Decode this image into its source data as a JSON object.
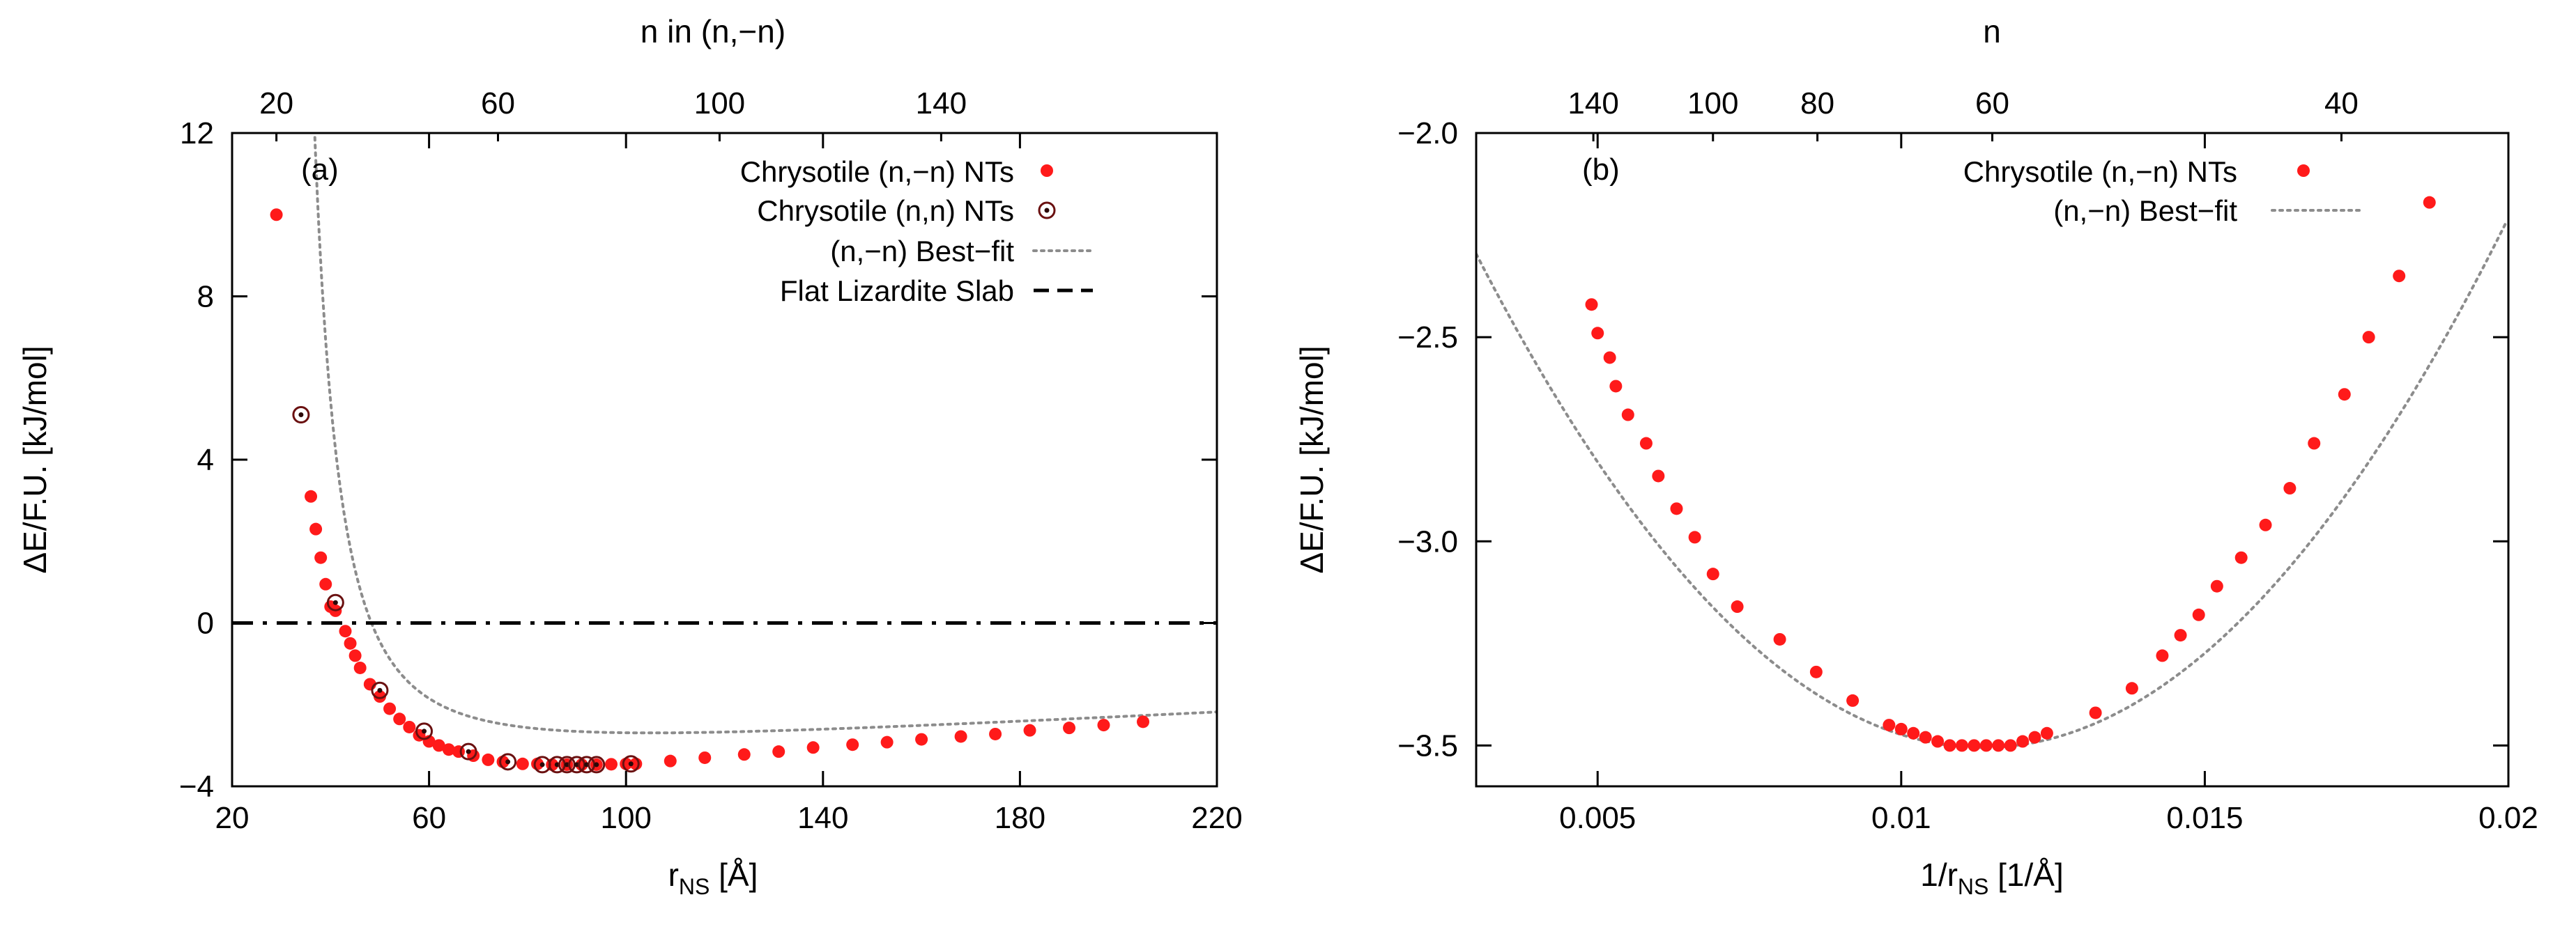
{
  "chart_data": [
    {
      "panel": "a",
      "type": "scatter",
      "panel_label": "(a)",
      "xlabel_main": "r",
      "xlabel_sub": "NS",
      "xlabel_unit": " [Å]",
      "ylabel": "ΔE/F.U. [kJ/mol]",
      "top_label": "n in (n,−n)",
      "xlim": [
        20,
        220
      ],
      "ylim": [
        -4,
        12
      ],
      "xticks": [
        20,
        60,
        100,
        140,
        180,
        220
      ],
      "yticks": [
        -4,
        0,
        4,
        8,
        12
      ],
      "top_ticks": [
        {
          "label": "20",
          "x": 29
        },
        {
          "label": "60",
          "x": 74
        },
        {
          "label": "100",
          "x": 119
        },
        {
          "label": "140",
          "x": 164
        }
      ],
      "legend": [
        {
          "label": "Chrysotile (n,−n) NTs",
          "kind": "red-dot"
        },
        {
          "label": "Chrysotile (n,n) NTs",
          "kind": "open-circle"
        },
        {
          "label": "(n,−n) Best−fit",
          "kind": "dotted"
        },
        {
          "label": "Flat Lizardite Slab",
          "kind": "dashdot"
        }
      ],
      "slab_y": 0,
      "fit": {
        "a": 0.8985,
        "b": -0.0045,
        "c": 29.72,
        "d": 0.0063
      },
      "series": [
        {
          "name": "Chrysotile (n,−n) NTs",
          "points": [
            [
              29,
              10.0
            ],
            [
              36,
              3.1
            ],
            [
              37,
              2.3
            ],
            [
              38,
              1.6
            ],
            [
              39,
              0.95
            ],
            [
              40,
              0.4
            ],
            [
              41,
              0.3
            ],
            [
              43,
              -0.2
            ],
            [
              44,
              -0.5
            ],
            [
              45,
              -0.8
            ],
            [
              46,
              -1.1
            ],
            [
              48,
              -1.5
            ],
            [
              50,
              -1.8
            ],
            [
              52,
              -2.1
            ],
            [
              54,
              -2.35
            ],
            [
              56,
              -2.55
            ],
            [
              58,
              -2.75
            ],
            [
              60,
              -2.9
            ],
            [
              62,
              -3.0
            ],
            [
              64,
              -3.1
            ],
            [
              66,
              -3.15
            ],
            [
              69,
              -3.25
            ],
            [
              72,
              -3.35
            ],
            [
              75,
              -3.4
            ],
            [
              79,
              -3.45
            ],
            [
              82,
              -3.45
            ],
            [
              85,
              -3.47
            ],
            [
              88,
              -3.47
            ],
            [
              91,
              -3.47
            ],
            [
              94,
              -3.47
            ],
            [
              97,
              -3.46
            ],
            [
              100,
              -3.45
            ],
            [
              102,
              -3.45
            ],
            [
              109,
              -3.38
            ],
            [
              116,
              -3.3
            ],
            [
              124,
              -3.22
            ],
            [
              131,
              -3.15
            ],
            [
              138,
              -3.05
            ],
            [
              146,
              -2.98
            ],
            [
              153,
              -2.92
            ],
            [
              160,
              -2.85
            ],
            [
              168,
              -2.78
            ],
            [
              175,
              -2.72
            ],
            [
              182,
              -2.63
            ],
            [
              190,
              -2.57
            ],
            [
              197,
              -2.5
            ],
            [
              205,
              -2.42
            ]
          ]
        },
        {
          "name": "Chrysotile (n,n) NTs",
          "points": [
            [
              34,
              5.1
            ],
            [
              41,
              0.5
            ],
            [
              50,
              -1.65
            ],
            [
              59,
              -2.65
            ],
            [
              68,
              -3.15
            ],
            [
              76,
              -3.4
            ],
            [
              83,
              -3.47
            ],
            [
              86,
              -3.47
            ],
            [
              88,
              -3.47
            ],
            [
              90,
              -3.47
            ],
            [
              92,
              -3.47
            ],
            [
              94,
              -3.47
            ],
            [
              101,
              -3.45
            ]
          ]
        }
      ]
    },
    {
      "panel": "b",
      "type": "scatter",
      "panel_label": "(b)",
      "xlabel_main": "1/r",
      "xlabel_sub": "NS",
      "xlabel_unit": " [1/Å]",
      "ylabel": "ΔE/F.U. [kJ/mol]",
      "top_label": "n",
      "xlim": [
        0.003,
        0.02
      ],
      "ylim": [
        -3.6,
        -2.0
      ],
      "xticks": [
        0.005,
        0.01,
        0.015,
        0.02
      ],
      "xtick_labels": [
        "0.005",
        "0.01",
        "0.015",
        "0.02"
      ],
      "yticks": [
        -3.5,
        -3.0,
        -2.5,
        -2.0
      ],
      "ytick_labels": [
        "−3.5",
        "−3.0",
        "−2.5",
        "−2.0"
      ],
      "top_ticks": [
        {
          "label": "140",
          "x": 0.00493
        },
        {
          "label": "100",
          "x": 0.0069
        },
        {
          "label": "80",
          "x": 0.00862
        },
        {
          "label": "60",
          "x": 0.0115
        },
        {
          "label": "40",
          "x": 0.01725
        }
      ],
      "legend": [
        {
          "label": "Chrysotile (n,−n) NTs",
          "kind": "red-dot"
        },
        {
          "label": "(n,−n) Best−fit",
          "kind": "dotted"
        }
      ],
      "fit": {
        "a": 17340,
        "x0": 0.01135,
        "y0": -3.505
      },
      "series": [
        {
          "name": "Chrysotile (n,−n) NTs",
          "points": [
            [
              0.0049,
              -2.42
            ],
            [
              0.005,
              -2.49
            ],
            [
              0.0052,
              -2.55
            ],
            [
              0.0053,
              -2.62
            ],
            [
              0.0055,
              -2.69
            ],
            [
              0.0058,
              -2.76
            ],
            [
              0.006,
              -2.84
            ],
            [
              0.0063,
              -2.92
            ],
            [
              0.0066,
              -2.99
            ],
            [
              0.0069,
              -3.08
            ],
            [
              0.0073,
              -3.16
            ],
            [
              0.008,
              -3.24
            ],
            [
              0.0086,
              -3.32
            ],
            [
              0.0092,
              -3.39
            ],
            [
              0.0098,
              -3.45
            ],
            [
              0.01,
              -3.46
            ],
            [
              0.0102,
              -3.47
            ],
            [
              0.0104,
              -3.48
            ],
            [
              0.0106,
              -3.49
            ],
            [
              0.0108,
              -3.5
            ],
            [
              0.011,
              -3.5
            ],
            [
              0.0112,
              -3.5
            ],
            [
              0.0114,
              -3.5
            ],
            [
              0.0116,
              -3.5
            ],
            [
              0.0118,
              -3.5
            ],
            [
              0.012,
              -3.49
            ],
            [
              0.0122,
              -3.48
            ],
            [
              0.0124,
              -3.47
            ],
            [
              0.0132,
              -3.42
            ],
            [
              0.0138,
              -3.36
            ],
            [
              0.0143,
              -3.28
            ],
            [
              0.0146,
              -3.23
            ],
            [
              0.0149,
              -3.18
            ],
            [
              0.0152,
              -3.11
            ],
            [
              0.0156,
              -3.04
            ],
            [
              0.016,
              -2.96
            ],
            [
              0.0164,
              -2.87
            ],
            [
              0.0168,
              -2.76
            ],
            [
              0.0173,
              -2.64
            ],
            [
              0.0177,
              -2.5
            ],
            [
              0.0182,
              -2.35
            ],
            [
              0.0187,
              -2.17
            ]
          ]
        }
      ]
    }
  ]
}
